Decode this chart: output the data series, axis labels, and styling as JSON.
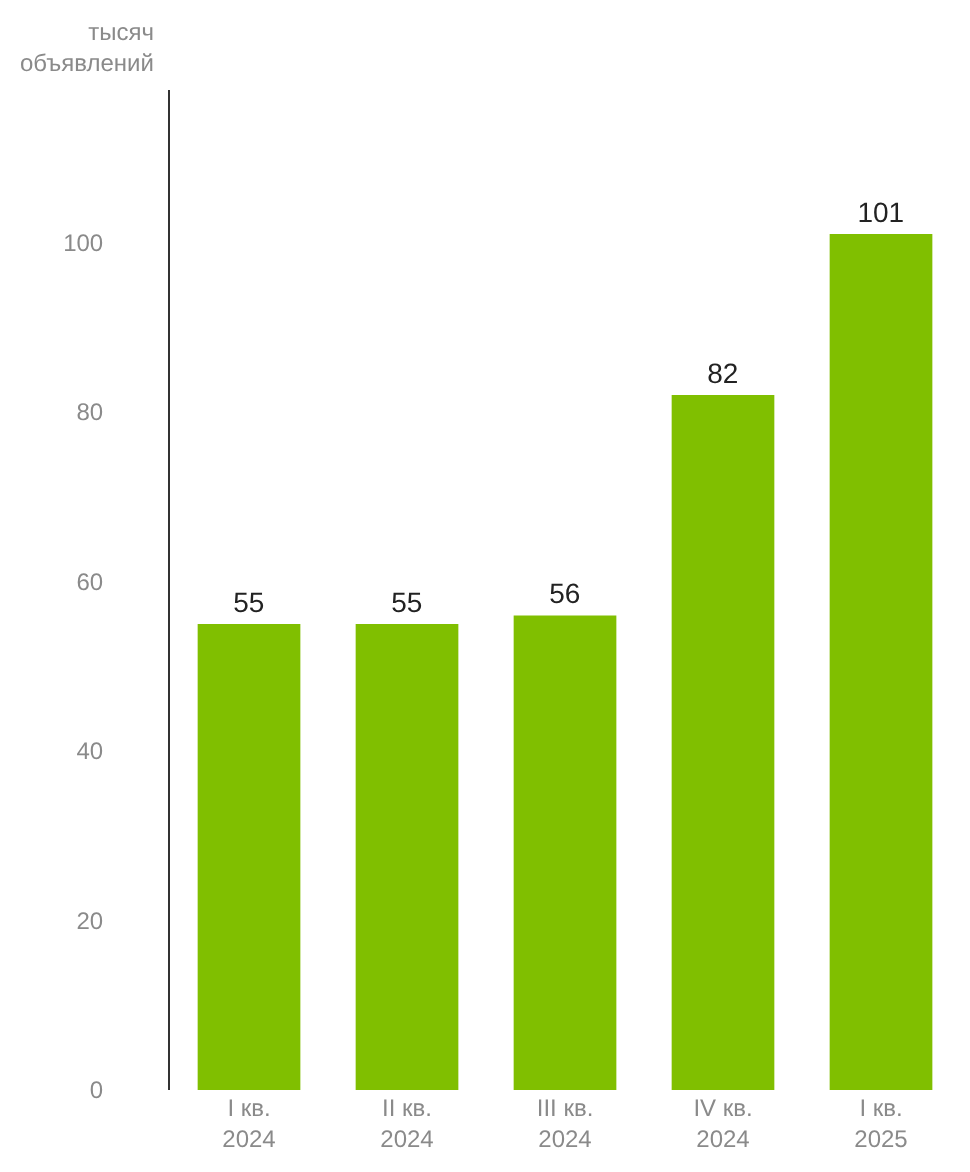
{
  "chart_data": {
    "type": "bar",
    "ylabel": "тысяч\nобъявлений",
    "categories": [
      "I кв.\n2024",
      "II кв.\n2024",
      "III кв.\n2024",
      "IV кв.\n2024",
      "I кв.\n2025"
    ],
    "values": [
      55,
      55,
      56,
      82,
      101
    ],
    "color": "#80bf00",
    "ylim": [
      0,
      118
    ],
    "yticks": [
      0,
      20,
      40,
      60,
      80,
      100
    ],
    "grid": false,
    "data_labels": true,
    "legend": false
  }
}
